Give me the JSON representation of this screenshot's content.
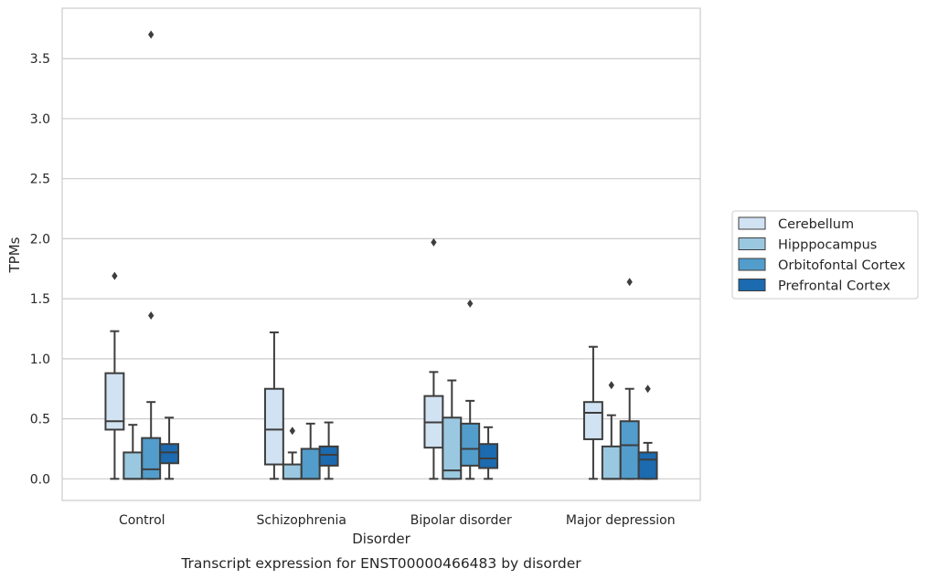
{
  "chart_data": {
    "type": "box",
    "title": "",
    "caption": "Transcript expression for ENST00000466483 by disorder",
    "xlabel": "Disorder",
    "ylabel": "TPMs",
    "ylim": [
      -0.18,
      3.92
    ],
    "yticks": [
      0.0,
      0.5,
      1.0,
      1.5,
      2.0,
      2.5,
      3.0,
      3.5
    ],
    "ytick_labels": [
      "0.0",
      "0.5",
      "1.0",
      "1.5",
      "2.0",
      "2.5",
      "3.0",
      "3.5"
    ],
    "grid": "horizontal",
    "legend_position": "right",
    "categories": [
      "Control",
      "Schizophrenia",
      "Bipolar disorder",
      "Major depression"
    ],
    "series": [
      {
        "name": "Cerebellum",
        "color": "#d1e2f2",
        "boxes": [
          {
            "whislo": 0.0,
            "q1": 0.41,
            "med": 0.48,
            "q3": 0.88,
            "whishi": 1.23,
            "fliers": [
              1.69
            ]
          },
          {
            "whislo": 0.0,
            "q1": 0.12,
            "med": 0.41,
            "q3": 0.75,
            "whishi": 1.22,
            "fliers": []
          },
          {
            "whislo": 0.0,
            "q1": 0.26,
            "med": 0.47,
            "q3": 0.69,
            "whishi": 0.89,
            "fliers": [
              1.97
            ]
          },
          {
            "whislo": 0.0,
            "q1": 0.33,
            "med": 0.55,
            "q3": 0.64,
            "whishi": 1.1,
            "fliers": []
          }
        ]
      },
      {
        "name": "Hipppocampus",
        "color": "#9ac8e0",
        "boxes": [
          {
            "whislo": 0.0,
            "q1": 0.0,
            "med": 0.0,
            "q3": 0.22,
            "whishi": 0.45,
            "fliers": []
          },
          {
            "whislo": 0.0,
            "q1": 0.0,
            "med": 0.0,
            "q3": 0.12,
            "whishi": 0.22,
            "fliers": [
              0.4
            ]
          },
          {
            "whislo": 0.0,
            "q1": 0.0,
            "med": 0.07,
            "q3": 0.51,
            "whishi": 0.82,
            "fliers": []
          },
          {
            "whislo": 0.0,
            "q1": 0.0,
            "med": 0.0,
            "q3": 0.27,
            "whishi": 0.53,
            "fliers": [
              0.78
            ]
          }
        ]
      },
      {
        "name": "Orbitofontal Cortex",
        "color": "#529dcc",
        "boxes": [
          {
            "whislo": 0.0,
            "q1": 0.0,
            "med": 0.08,
            "q3": 0.34,
            "whishi": 0.64,
            "fliers": [
              3.7,
              1.36
            ]
          },
          {
            "whislo": 0.0,
            "q1": 0.0,
            "med": 0.0,
            "q3": 0.25,
            "whishi": 0.46,
            "fliers": []
          },
          {
            "whislo": 0.0,
            "q1": 0.11,
            "med": 0.25,
            "q3": 0.46,
            "whishi": 0.65,
            "fliers": [
              1.46
            ]
          },
          {
            "whislo": 0.0,
            "q1": 0.0,
            "med": 0.28,
            "q3": 0.48,
            "whishi": 0.75,
            "fliers": [
              1.64
            ]
          }
        ]
      },
      {
        "name": "Prefrontal Cortex",
        "color": "#1c6aaf",
        "boxes": [
          {
            "whislo": 0.0,
            "q1": 0.13,
            "med": 0.22,
            "q3": 0.29,
            "whishi": 0.51,
            "fliers": []
          },
          {
            "whislo": 0.0,
            "q1": 0.11,
            "med": 0.2,
            "q3": 0.27,
            "whishi": 0.47,
            "fliers": []
          },
          {
            "whislo": 0.0,
            "q1": 0.09,
            "med": 0.17,
            "q3": 0.29,
            "whishi": 0.43,
            "fliers": []
          },
          {
            "whislo": 0.0,
            "q1": 0.0,
            "med": 0.16,
            "q3": 0.22,
            "whishi": 0.3,
            "fliers": [
              0.75
            ]
          }
        ]
      }
    ]
  }
}
